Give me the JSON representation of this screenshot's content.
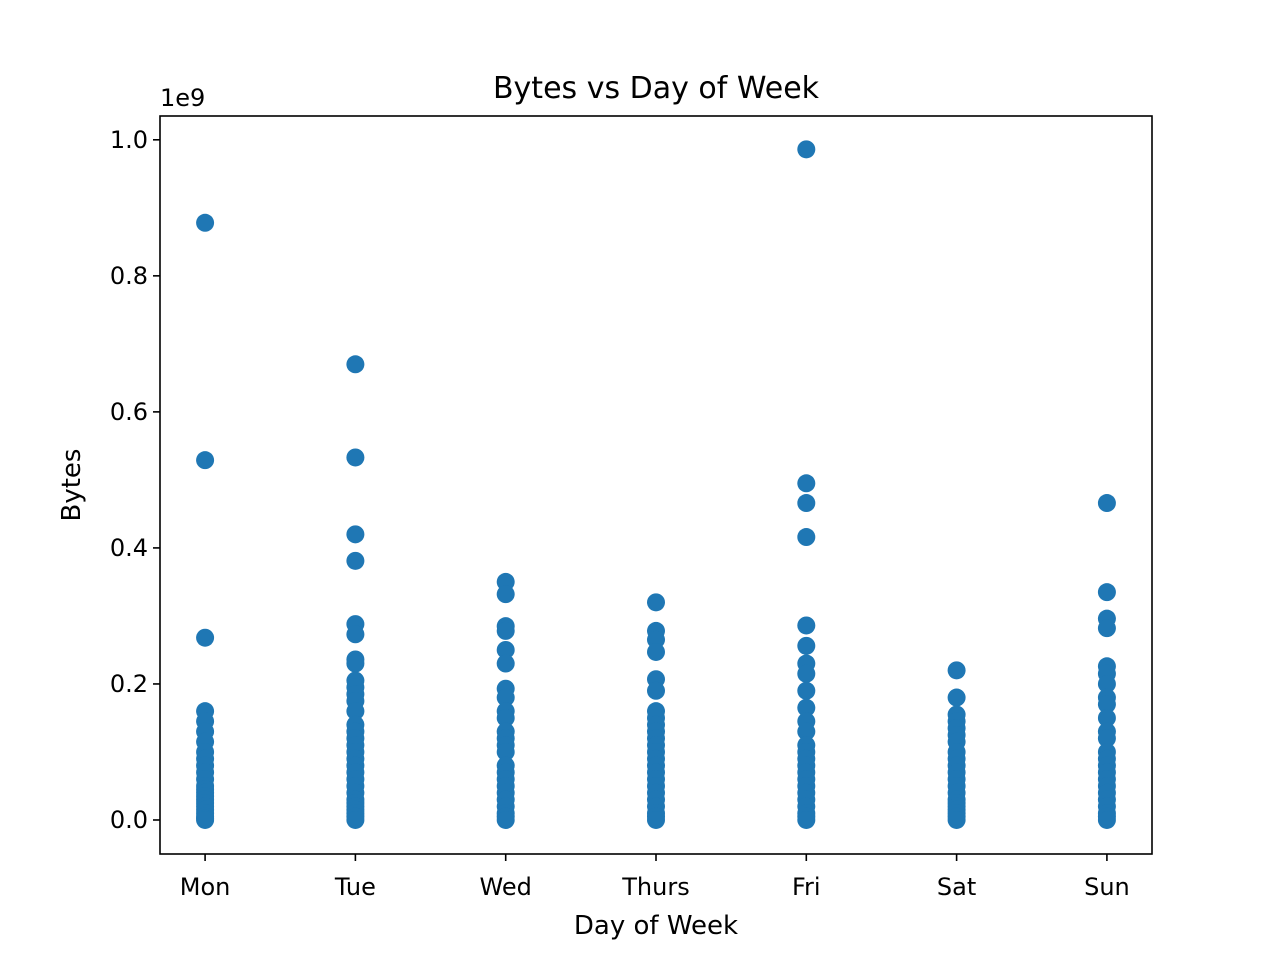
{
  "chart_data": {
    "type": "scatter",
    "title": "Bytes vs Day of Week",
    "xlabel": "Day of Week",
    "ylabel": "Bytes",
    "y_offset_label": "1e9",
    "y_scale_factor": 1000000000,
    "categories": [
      "Mon",
      "Tue",
      "Wed",
      "Thurs",
      "Fri",
      "Sat",
      "Sun"
    ],
    "ylim": [
      -0.05,
      1.035
    ],
    "yticks": [
      0.0,
      0.2,
      0.4,
      0.6,
      0.8,
      1.0
    ],
    "ytick_labels": [
      "0.0",
      "0.2",
      "0.4",
      "0.6",
      "0.8",
      "1.0"
    ],
    "grid": false,
    "legend": "none",
    "marker_color": "#1f77b4",
    "points": [
      {
        "day": "Mon",
        "values": [
          0.878,
          0.529,
          0.268,
          0.16,
          0.145,
          0.13,
          0.115,
          0.1,
          0.09,
          0.08,
          0.07,
          0.06,
          0.05,
          0.045,
          0.04,
          0.035,
          0.03,
          0.025,
          0.02,
          0.015,
          0.01,
          0.005,
          0.002,
          0.0
        ]
      },
      {
        "day": "Tue",
        "values": [
          0.67,
          0.533,
          0.42,
          0.381,
          0.288,
          0.273,
          0.236,
          0.23,
          0.205,
          0.195,
          0.185,
          0.175,
          0.16,
          0.14,
          0.13,
          0.12,
          0.11,
          0.1,
          0.09,
          0.08,
          0.07,
          0.06,
          0.05,
          0.04,
          0.03,
          0.025,
          0.02,
          0.015,
          0.01,
          0.005,
          0.0
        ]
      },
      {
        "day": "Wed",
        "values": [
          0.35,
          0.332,
          0.285,
          0.278,
          0.25,
          0.23,
          0.193,
          0.18,
          0.16,
          0.15,
          0.13,
          0.12,
          0.11,
          0.1,
          0.08,
          0.07,
          0.06,
          0.05,
          0.04,
          0.03,
          0.02,
          0.01,
          0.005,
          0.0
        ]
      },
      {
        "day": "Thurs",
        "values": [
          0.32,
          0.278,
          0.265,
          0.247,
          0.207,
          0.19,
          0.16,
          0.15,
          0.14,
          0.13,
          0.12,
          0.11,
          0.1,
          0.09,
          0.08,
          0.07,
          0.06,
          0.05,
          0.04,
          0.03,
          0.02,
          0.01,
          0.005,
          0.0
        ]
      },
      {
        "day": "Fri",
        "values": [
          0.986,
          0.495,
          0.466,
          0.416,
          0.286,
          0.256,
          0.23,
          0.215,
          0.19,
          0.165,
          0.145,
          0.13,
          0.11,
          0.1,
          0.09,
          0.08,
          0.07,
          0.06,
          0.05,
          0.04,
          0.03,
          0.02,
          0.01,
          0.005,
          0.0
        ]
      },
      {
        "day": "Sat",
        "values": [
          0.22,
          0.18,
          0.155,
          0.145,
          0.135,
          0.125,
          0.115,
          0.1,
          0.09,
          0.08,
          0.07,
          0.06,
          0.05,
          0.04,
          0.03,
          0.025,
          0.02,
          0.015,
          0.01,
          0.005,
          0.0
        ]
      },
      {
        "day": "Sun",
        "values": [
          0.466,
          0.335,
          0.296,
          0.282,
          0.226,
          0.215,
          0.2,
          0.18,
          0.17,
          0.15,
          0.13,
          0.12,
          0.1,
          0.09,
          0.08,
          0.07,
          0.06,
          0.05,
          0.04,
          0.03,
          0.02,
          0.01,
          0.005,
          0.0
        ]
      }
    ]
  }
}
